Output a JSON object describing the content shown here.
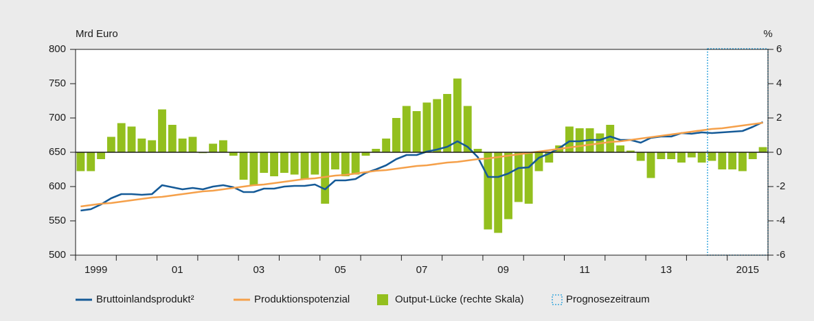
{
  "chart_data": {
    "type": "combo",
    "y_label": "Mrd Euro",
    "y2_label": "%",
    "categories": [
      "1999",
      null,
      null,
      null,
      null,
      null,
      null,
      null,
      "01",
      null,
      null,
      null,
      null,
      null,
      null,
      null,
      "03",
      null,
      null,
      null,
      null,
      null,
      null,
      null,
      "05",
      null,
      null,
      null,
      null,
      null,
      null,
      null,
      "07",
      null,
      null,
      null,
      null,
      null,
      null,
      null,
      "09",
      null,
      null,
      null,
      null,
      null,
      null,
      null,
      "11",
      null,
      null,
      null,
      null,
      null,
      null,
      null,
      "13",
      null,
      null,
      null,
      null,
      null,
      null,
      null,
      "2015",
      null,
      null,
      null
    ],
    "ylim": [
      500,
      800
    ],
    "yticks": [
      500,
      550,
      600,
      650,
      700,
      750,
      800
    ],
    "y2lim": [
      -6,
      6
    ],
    "y2ticks": [
      -6,
      -4,
      -2,
      0,
      2,
      4,
      6
    ],
    "forecast_label": "Prognosezeitraum",
    "series": [
      {
        "name": "Bruttoinlandsprodukt²",
        "type": "line",
        "color": "#155a97",
        "values": [
          565,
          567,
          574,
          583,
          589,
          589,
          588,
          589,
          602,
          599,
          596,
          598,
          596,
          600,
          602,
          599,
          592,
          592,
          597,
          597,
          600,
          601,
          601,
          603,
          596,
          609,
          609,
          611,
          620,
          625,
          631,
          640,
          646,
          646,
          651,
          654,
          658,
          666,
          658,
          643,
          614,
          614,
          619,
          627,
          628,
          642,
          648,
          656,
          666,
          666,
          668,
          668,
          673,
          668,
          668,
          664,
          671,
          673,
          673,
          678,
          677,
          679,
          678,
          679,
          680,
          681,
          687,
          694
        ]
      },
      {
        "name": "Produktionspotenzial",
        "type": "line",
        "color": "#f5a04a",
        "values": [
          571,
          573,
          575,
          576,
          578,
          580,
          582,
          584,
          585,
          587,
          589,
          591,
          593,
          594,
          596,
          598,
          600,
          602,
          603,
          605,
          607,
          609,
          611,
          612,
          614,
          616,
          617,
          619,
          621,
          623,
          624,
          626,
          628,
          630,
          631,
          633,
          635,
          636,
          638,
          640,
          641,
          643,
          645,
          647,
          649,
          651,
          653,
          655,
          657,
          659,
          661,
          663,
          665,
          666,
          668,
          670,
          672,
          674,
          676,
          678,
          680,
          682,
          684,
          685,
          687,
          689,
          691,
          693
        ]
      },
      {
        "name": "Output-Lücke (rechte Skala)",
        "type": "bar",
        "axis": "y2",
        "color": "#93bf1e",
        "values": [
          -1.1,
          -1.1,
          -0.4,
          0.9,
          1.7,
          1.5,
          0.8,
          0.7,
          2.5,
          1.6,
          0.8,
          0.9,
          -0.05,
          0.5,
          0.7,
          -0.2,
          -1.6,
          -1.9,
          -1.2,
          -1.4,
          -1.2,
          -1.3,
          -1.6,
          -1.3,
          -3.0,
          -1.0,
          -1.4,
          -1.3,
          -0.2,
          0.2,
          0.8,
          2.0,
          2.7,
          2.4,
          2.9,
          3.1,
          3.4,
          4.3,
          2.7,
          0.2,
          -4.5,
          -4.7,
          -3.9,
          -2.9,
          -3.0,
          -1.1,
          -0.6,
          0.4,
          1.5,
          1.4,
          1.4,
          1.1,
          1.6,
          0.4,
          0.1,
          -0.5,
          -1.5,
          -0.4,
          -0.4,
          -0.6,
          -0.3,
          -0.6,
          -0.5,
          -1.0,
          -1.0,
          -1.1,
          -0.4,
          0.3
        ]
      }
    ]
  }
}
